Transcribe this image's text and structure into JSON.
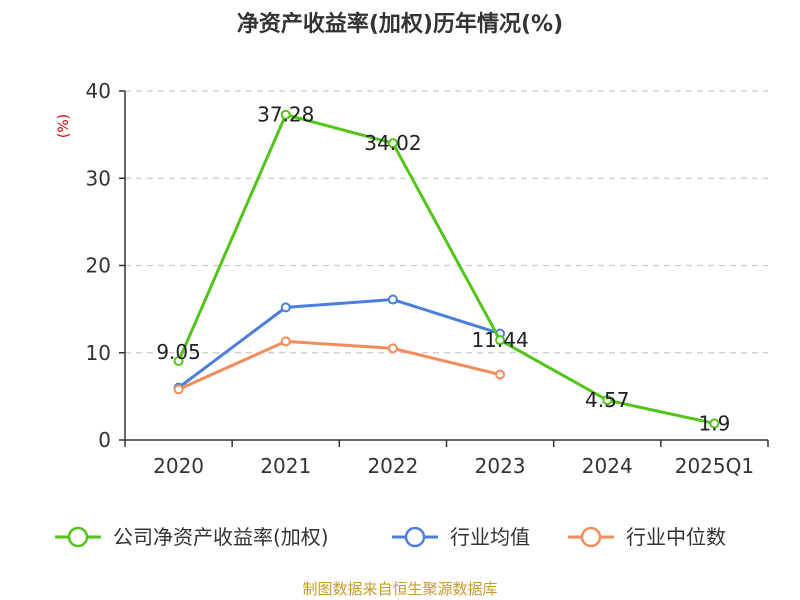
{
  "source": "制图数据来自恒生聚源数据库",
  "chart_data": {
    "type": "line",
    "title": "净资产收益率(加权)历年情况(%)",
    "ylabel": "(%)",
    "xlabel": "",
    "categories": [
      "2020",
      "2021",
      "2022",
      "2023",
      "2024",
      "2025Q1"
    ],
    "ylim": [
      0,
      40
    ],
    "yticks": [
      0,
      10,
      20,
      30,
      40
    ],
    "grid": true,
    "legend_position": "bottom",
    "series": [
      {
        "name": "公司净资产收益率(加权)",
        "color": "#52c41a",
        "values": [
          9.05,
          37.28,
          34.02,
          11.44,
          4.57,
          1.9
        ],
        "labels": [
          "9.05",
          "37.28",
          "34.02",
          "11.44",
          "4.57",
          "1.9"
        ]
      },
      {
        "name": "行业均值",
        "color": "#4a7fdb",
        "values": [
          6.0,
          15.2,
          16.1,
          12.2,
          null,
          null
        ]
      },
      {
        "name": "行业中位数",
        "color": "#f28c5a",
        "values": [
          5.8,
          11.3,
          10.5,
          7.5,
          null,
          null
        ]
      }
    ]
  }
}
